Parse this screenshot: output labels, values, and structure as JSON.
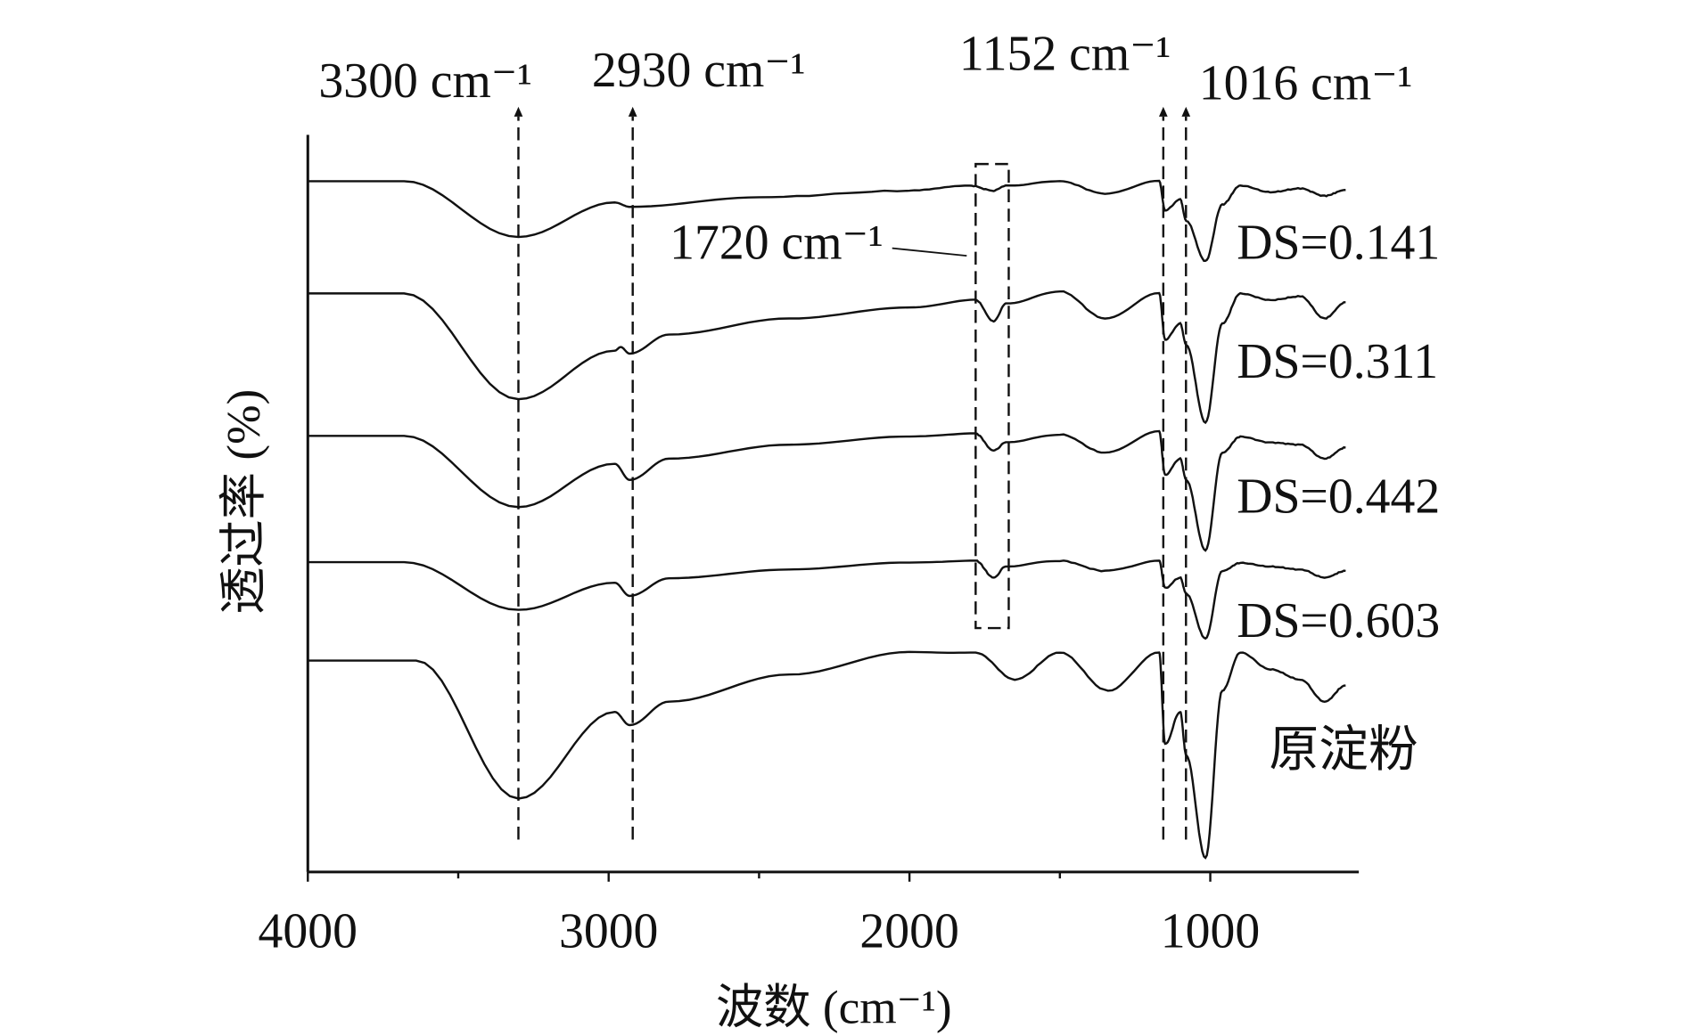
{
  "chart_data": {
    "type": "line",
    "title": "",
    "xlabel": "波数 (cm⁻¹)",
    "ylabel": "透过率 (%)",
    "xlim": [
      4000,
      500
    ],
    "ylim": [
      0,
      100.4
    ],
    "x_reversed": true,
    "grid": false,
    "legend": "none (series labeled inline at right)",
    "x_ticks": [
      4000,
      3000,
      2000,
      1000
    ],
    "x_minor_ticks": [
      3500,
      2500,
      1500
    ],
    "color": "#111111",
    "series": [
      {
        "name": "DS=0.141",
        "x": [
          4000,
          3680,
          3300,
          2980,
          2930,
          2500,
          2000,
          1800,
          1720,
          1680,
          1500,
          1350,
          1170,
          1150,
          1100,
          1080,
          1016,
          960,
          900,
          800,
          700,
          620,
          550
        ],
        "y": [
          94.1,
          94.1,
          86.5,
          91.2,
          90.6,
          91.9,
          92.8,
          93.5,
          92.8,
          93.5,
          94.1,
          92.4,
          94.1,
          90.1,
          91.6,
          88.7,
          83.2,
          90.9,
          93.5,
          92.6,
          93.1,
          92.1,
          92.9
        ]
      },
      {
        "name": "DS=0.311",
        "x": [
          4000,
          3680,
          3300,
          2980,
          2960,
          2930,
          2800,
          2400,
          2000,
          1780,
          1720,
          1680,
          1500,
          1350,
          1170,
          1150,
          1100,
          1080,
          1016,
          960,
          900,
          800,
          700,
          620,
          550
        ],
        "y": [
          78.8,
          78.8,
          64.4,
          71.0,
          71.5,
          70.6,
          73.2,
          75.4,
          76.9,
          77.9,
          75.0,
          77.4,
          79.1,
          75.4,
          78.8,
          72.5,
          74.7,
          71.8,
          61.2,
          74.7,
          78.8,
          77.9,
          78.4,
          75.4,
          77.6
        ]
      },
      {
        "name": "DS=0.442",
        "x": [
          4000,
          3680,
          3300,
          2980,
          2930,
          2800,
          2400,
          2000,
          1780,
          1720,
          1680,
          1500,
          1350,
          1170,
          1150,
          1100,
          1080,
          1016,
          960,
          900,
          800,
          700,
          620,
          550
        ],
        "y": [
          59.4,
          59.4,
          49.7,
          55.6,
          53.4,
          56.3,
          58.2,
          59.3,
          59.7,
          57.4,
          58.5,
          59.6,
          57.1,
          60.0,
          54.1,
          56.3,
          53.4,
          43.8,
          57.1,
          59.3,
          58.5,
          58.2,
          56.3,
          57.8
        ]
      },
      {
        "name": "DS=0.603",
        "x": [
          4000,
          3680,
          3300,
          2980,
          2930,
          2800,
          2400,
          2000,
          1780,
          1720,
          1680,
          1500,
          1350,
          1170,
          1150,
          1100,
          1080,
          1016,
          960,
          900,
          800,
          700,
          620,
          550
        ],
        "y": [
          42.2,
          42.2,
          35.7,
          39.4,
          37.6,
          40.0,
          41.2,
          42.1,
          42.4,
          40.1,
          41.6,
          42.4,
          41.0,
          42.4,
          38.7,
          40.1,
          37.9,
          31.8,
          41.0,
          42.1,
          41.6,
          41.2,
          40.1,
          41.0
        ]
      },
      {
        "name": "原淀粉",
        "x": [
          4000,
          3640,
          3300,
          2980,
          2930,
          2800,
          2400,
          2000,
          1780,
          1650,
          1500,
          1340,
          1170,
          1150,
          1100,
          1080,
          1016,
          960,
          900,
          800,
          700,
          620,
          550
        ],
        "y": [
          28.8,
          28.8,
          10.0,
          21.8,
          20.0,
          23.2,
          26.9,
          29.9,
          29.9,
          26.2,
          29.9,
          24.7,
          29.9,
          17.4,
          21.8,
          15.9,
          1.9,
          24.7,
          29.9,
          27.6,
          26.2,
          23.2,
          25.4
        ]
      }
    ],
    "annotations": [
      {
        "label": "3300 cm⁻¹",
        "x": 3300
      },
      {
        "label": "2930 cm⁻¹",
        "x": 2930
      },
      {
        "label": "1152 cm⁻¹",
        "x": 1152
      },
      {
        "label": "1016 cm⁻¹",
        "x": 1016
      }
    ],
    "box_annotation": {
      "label": "1720 cm⁻¹",
      "x_range": [
        1780,
        1670
      ]
    }
  }
}
